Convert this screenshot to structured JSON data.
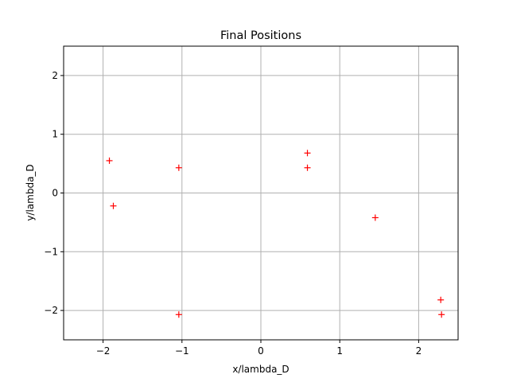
{
  "chart_data": {
    "type": "scatter",
    "title": "Final Positions",
    "xlabel": "x/lambda_D",
    "ylabel": "y/lambda_D",
    "xlim": [
      -2.5,
      2.5
    ],
    "ylim": [
      -2.5,
      2.5
    ],
    "xticks": [
      -2,
      -1,
      0,
      1,
      2
    ],
    "yticks": [
      -2,
      -1,
      0,
      1,
      2
    ],
    "xtick_labels": [
      "−2",
      "−1",
      "0",
      "1",
      "2"
    ],
    "ytick_labels": [
      "−2",
      "−1",
      "0",
      "1",
      "2"
    ],
    "grid": true,
    "marker": "+",
    "color": "#ff0000",
    "points": [
      {
        "x": -1.92,
        "y": 0.55
      },
      {
        "x": -1.87,
        "y": -0.22
      },
      {
        "x": -1.04,
        "y": 0.43
      },
      {
        "x": -1.04,
        "y": -2.07
      },
      {
        "x": 0.59,
        "y": 0.68
      },
      {
        "x": 0.59,
        "y": 0.43
      },
      {
        "x": 1.45,
        "y": -0.42
      },
      {
        "x": 2.28,
        "y": -1.82
      },
      {
        "x": 2.29,
        "y": -2.07
      }
    ]
  }
}
